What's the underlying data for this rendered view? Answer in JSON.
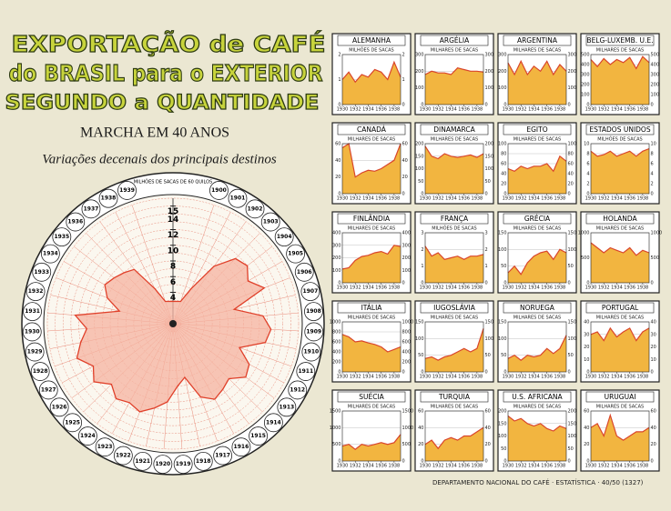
{
  "footer": "DEPARTAMENTO NACIONAL DO CAFÉ · ESTATÍSTICA · 40/50 (1327)",
  "chart_data": [
    {
      "type": "polar",
      "title_lines": [
        "EXPORTAÇÃO de CAFÉ",
        "do BRASIL para o EXTERIOR",
        "SEGUNDO a QUANTIDADE"
      ],
      "subtitle": "MARCHA EM 40 ANOS",
      "note": "Variações decenais dos principais destinos",
      "axis_label": "MILHÕES DE SACAS DE 60 QUILOS",
      "x": [
        1900,
        1901,
        1902,
        1903,
        1904,
        1905,
        1906,
        1907,
        1908,
        1909,
        1910,
        1911,
        1912,
        1913,
        1914,
        1915,
        1916,
        1917,
        1918,
        1919,
        1920,
        1921,
        1922,
        1923,
        1924,
        1925,
        1926,
        1927,
        1928,
        1929,
        1930,
        1931,
        1932,
        1933,
        1934,
        1935,
        1936,
        1937,
        1938,
        1939
      ],
      "values": [
        3,
        5,
        9,
        11.5,
        12,
        11,
        12.5,
        8,
        11.5,
        12.5,
        12,
        9,
        11,
        11.5,
        10,
        10.5,
        11,
        10,
        7,
        8,
        10,
        11,
        12,
        11.5,
        12,
        11,
        12.5,
        11.5,
        13,
        12,
        11,
        12.5,
        7,
        9,
        10,
        9.5,
        9,
        8.5,
        5,
        3
      ],
      "rlim": [
        0,
        16
      ],
      "rticks": [
        4,
        6,
        8,
        10,
        12,
        14,
        15
      ],
      "color": "#f5b3a0",
      "line_color": "#e0402a"
    },
    {
      "type": "area",
      "title": "ALEMANHA",
      "subtitle": "MILHÕES DE SACAS",
      "x": [
        1930,
        1931,
        1932,
        1933,
        1934,
        1935,
        1936,
        1937,
        1938,
        1939
      ],
      "values": [
        1.0,
        1.3,
        0.9,
        1.2,
        1.1,
        1.4,
        1.3,
        1.0,
        1.7,
        1.1
      ],
      "ylim": [
        0,
        2
      ],
      "yticks": [
        0,
        1,
        2
      ],
      "xticks": [
        1930,
        1932,
        1934,
        1936,
        1938
      ],
      "color": "#f2b540",
      "line_color": "#d9452b"
    },
    {
      "type": "area",
      "title": "ARGÉLIA",
      "subtitle": "MILHARES DE SACAS",
      "x": [
        1930,
        1931,
        1932,
        1933,
        1934,
        1935,
        1936,
        1937,
        1938,
        1939
      ],
      "values": [
        180,
        200,
        190,
        190,
        180,
        220,
        210,
        200,
        200,
        195
      ],
      "ylim": [
        0,
        300
      ],
      "yticks": [
        0,
        100,
        200,
        300
      ],
      "xticks": [
        1930,
        1932,
        1934,
        1936,
        1938
      ],
      "color": "#f2b540",
      "line_color": "#d9452b"
    },
    {
      "type": "area",
      "title": "ARGENTINA",
      "subtitle": "MILHARES DE SACAS",
      "x": [
        1930,
        1931,
        1932,
        1933,
        1934,
        1935,
        1936,
        1937,
        1938,
        1939
      ],
      "values": [
        250,
        180,
        260,
        180,
        230,
        200,
        260,
        180,
        240,
        200
      ],
      "ylim": [
        0,
        300
      ],
      "yticks": [
        0,
        100,
        200,
        300
      ],
      "xticks": [
        1930,
        1932,
        1934,
        1936,
        1938
      ],
      "color": "#f2b540",
      "line_color": "#d9452b"
    },
    {
      "type": "area",
      "title": "BELG-LUXEMB. U.E.",
      "subtitle": "MILHARES DE SACAS",
      "x": [
        1930,
        1931,
        1932,
        1933,
        1934,
        1935,
        1936,
        1937,
        1938,
        1939
      ],
      "values": [
        450,
        380,
        460,
        400,
        450,
        420,
        470,
        360,
        480,
        420
      ],
      "ylim": [
        0,
        500
      ],
      "yticks": [
        0,
        100,
        200,
        300,
        400,
        500
      ],
      "xticks": [
        1930,
        1932,
        1934,
        1936,
        1938
      ],
      "color": "#f2b540",
      "line_color": "#d9452b"
    },
    {
      "type": "area",
      "title": "CANADÁ",
      "subtitle": "MILHARES DE SACAS",
      "x": [
        1930,
        1931,
        1932,
        1933,
        1934,
        1935,
        1936,
        1937,
        1938,
        1939
      ],
      "values": [
        55,
        60,
        20,
        25,
        28,
        27,
        30,
        35,
        40,
        60
      ],
      "ylim": [
        0,
        60
      ],
      "yticks": [
        0,
        20,
        40,
        60
      ],
      "xticks": [
        1930,
        1932,
        1934,
        1936,
        1938
      ],
      "color": "#f2b540",
      "line_color": "#d9452b"
    },
    {
      "type": "area",
      "title": "DINAMARCA",
      "subtitle": "MILHARES DE SACAS",
      "x": [
        1930,
        1931,
        1932,
        1933,
        1934,
        1935,
        1936,
        1937,
        1938,
        1939
      ],
      "values": [
        190,
        150,
        140,
        160,
        150,
        145,
        150,
        155,
        145,
        160
      ],
      "ylim": [
        0,
        200
      ],
      "yticks": [
        0,
        50,
        100,
        150,
        200
      ],
      "xticks": [
        1930,
        1932,
        1934,
        1936,
        1938
      ],
      "color": "#f2b540",
      "line_color": "#d9452b"
    },
    {
      "type": "area",
      "title": "EGITO",
      "subtitle": "MILHARES DE SACAS",
      "x": [
        1930,
        1931,
        1932,
        1933,
        1934,
        1935,
        1936,
        1937,
        1938,
        1939
      ],
      "values": [
        50,
        45,
        55,
        50,
        55,
        55,
        60,
        45,
        75,
        65
      ],
      "ylim": [
        0,
        100
      ],
      "yticks": [
        0,
        20,
        40,
        60,
        80,
        100
      ],
      "xticks": [
        1930,
        1932,
        1934,
        1936,
        1938
      ],
      "color": "#f2b540",
      "line_color": "#d9452b"
    },
    {
      "type": "area",
      "title": "ESTADOS UNIDOS",
      "subtitle": "MILHÕES DE SACAS",
      "x": [
        1930,
        1931,
        1932,
        1933,
        1934,
        1935,
        1936,
        1937,
        1938,
        1939
      ],
      "values": [
        8.5,
        7.5,
        7.8,
        8.5,
        7.5,
        8,
        8.5,
        7.5,
        8.5,
        9
      ],
      "ylim": [
        0,
        10
      ],
      "yticks": [
        0,
        2,
        4,
        6,
        8,
        10
      ],
      "xticks": [
        1930,
        1932,
        1934,
        1936,
        1938
      ],
      "color": "#f2b540",
      "line_color": "#d9452b"
    },
    {
      "type": "area",
      "title": "FINLÂNDIA",
      "subtitle": "MILHARES DE SACAS",
      "x": [
        1930,
        1931,
        1932,
        1933,
        1934,
        1935,
        1936,
        1937,
        1938,
        1939
      ],
      "values": [
        110,
        120,
        180,
        210,
        220,
        240,
        250,
        230,
        300,
        290
      ],
      "ylim": [
        0,
        400
      ],
      "yticks": [
        0,
        100,
        200,
        300,
        400
      ],
      "xticks": [
        1930,
        1932,
        1934,
        1936,
        1938
      ],
      "color": "#f2b540",
      "line_color": "#d9452b"
    },
    {
      "type": "area",
      "title": "FRANÇA",
      "subtitle": "MILHÕES DE SACAS",
      "x": [
        1930,
        1931,
        1932,
        1933,
        1934,
        1935,
        1936,
        1937,
        1938,
        1939
      ],
      "values": [
        2.2,
        1.6,
        1.8,
        1.4,
        1.5,
        1.6,
        1.4,
        1.6,
        1.6,
        1.7
      ],
      "ylim": [
        0,
        3
      ],
      "yticks": [
        0,
        1,
        2,
        3
      ],
      "xticks": [
        1930,
        1932,
        1934,
        1936,
        1938
      ],
      "color": "#f2b540",
      "line_color": "#d9452b"
    },
    {
      "type": "area",
      "title": "GRÉCIA",
      "subtitle": "MILHARES DE SACAS",
      "x": [
        1930,
        1931,
        1932,
        1933,
        1934,
        1935,
        1936,
        1937,
        1938,
        1939
      ],
      "values": [
        30,
        50,
        25,
        60,
        80,
        90,
        95,
        70,
        100,
        90
      ],
      "ylim": [
        0,
        150
      ],
      "yticks": [
        0,
        50,
        100,
        150
      ],
      "xticks": [
        1930,
        1932,
        1934,
        1936,
        1938
      ],
      "color": "#f2b540",
      "line_color": "#d9452b"
    },
    {
      "type": "area",
      "title": "HOLANDA",
      "subtitle": "MILHARES DE SACAS",
      "x": [
        1930,
        1931,
        1932,
        1933,
        1934,
        1935,
        1936,
        1937,
        1938,
        1939
      ],
      "values": [
        800,
        700,
        600,
        700,
        650,
        600,
        700,
        550,
        650,
        600
      ],
      "ylim": [
        0,
        1000
      ],
      "yticks": [
        0,
        500,
        1000
      ],
      "xticks": [
        1930,
        1932,
        1934,
        1936,
        1938
      ],
      "color": "#f2b540",
      "line_color": "#d9452b"
    },
    {
      "type": "area",
      "title": "ITÁLIA",
      "subtitle": "MILHARES DE SACAS",
      "x": [
        1930,
        1931,
        1932,
        1933,
        1934,
        1935,
        1936,
        1937,
        1938,
        1939
      ],
      "values": [
        750,
        700,
        600,
        620,
        580,
        550,
        500,
        400,
        450,
        500
      ],
      "ylim": [
        0,
        1000
      ],
      "yticks": [
        0,
        200,
        400,
        600,
        800,
        1000
      ],
      "xticks": [
        1930,
        1932,
        1934,
        1936,
        1938
      ],
      "color": "#f2b540",
      "line_color": "#d9452b"
    },
    {
      "type": "area",
      "title": "IUGOSLÁVIA",
      "subtitle": "MILHARES DE SACAS",
      "x": [
        1930,
        1931,
        1932,
        1933,
        1934,
        1935,
        1936,
        1937,
        1938,
        1939
      ],
      "values": [
        40,
        45,
        35,
        45,
        50,
        60,
        70,
        60,
        70,
        130
      ],
      "ylim": [
        0,
        150
      ],
      "yticks": [
        0,
        50,
        100,
        150
      ],
      "xticks": [
        1930,
        1932,
        1934,
        1936,
        1938
      ],
      "color": "#f2b540",
      "line_color": "#d9452b"
    },
    {
      "type": "area",
      "title": "NORUEGA",
      "subtitle": "MILHARES DE SACAS",
      "x": [
        1930,
        1931,
        1932,
        1933,
        1934,
        1935,
        1936,
        1937,
        1938,
        1939
      ],
      "values": [
        40,
        50,
        35,
        50,
        45,
        50,
        70,
        55,
        70,
        110
      ],
      "ylim": [
        0,
        150
      ],
      "yticks": [
        0,
        50,
        100,
        150
      ],
      "xticks": [
        1930,
        1932,
        1934,
        1936,
        1938
      ],
      "color": "#f2b540",
      "line_color": "#d9452b"
    },
    {
      "type": "area",
      "title": "PORTUGAL",
      "subtitle": "MILHARES DE SACAS",
      "x": [
        1930,
        1931,
        1932,
        1933,
        1934,
        1935,
        1936,
        1937,
        1938,
        1939
      ],
      "values": [
        30,
        32,
        25,
        35,
        28,
        32,
        35,
        25,
        32,
        35
      ],
      "ylim": [
        0,
        40
      ],
      "yticks": [
        0,
        10,
        20,
        30,
        40
      ],
      "xticks": [
        1930,
        1932,
        1934,
        1936,
        1938
      ],
      "color": "#f2b540",
      "line_color": "#d9452b"
    },
    {
      "type": "area",
      "title": "SUÉCIA",
      "subtitle": "MILHARES DE SACAS",
      "x": [
        1930,
        1931,
        1932,
        1933,
        1934,
        1935,
        1936,
        1937,
        1938,
        1939
      ],
      "values": [
        450,
        500,
        350,
        500,
        450,
        500,
        550,
        500,
        550,
        800
      ],
      "ylim": [
        0,
        1500
      ],
      "yticks": [
        0,
        500,
        1000,
        1500
      ],
      "xticks": [
        1930,
        1932,
        1934,
        1936,
        1938
      ],
      "color": "#f2b540",
      "line_color": "#d9452b"
    },
    {
      "type": "area",
      "title": "TURQUIA",
      "subtitle": "MILHARES DE SACAS",
      "x": [
        1930,
        1931,
        1932,
        1933,
        1934,
        1935,
        1936,
        1937,
        1938,
        1939
      ],
      "values": [
        20,
        25,
        15,
        25,
        28,
        25,
        30,
        30,
        35,
        40
      ],
      "ylim": [
        0,
        60
      ],
      "yticks": [
        0,
        20,
        40,
        60
      ],
      "xticks": [
        1930,
        1932,
        1934,
        1936,
        1938
      ],
      "color": "#f2b540",
      "line_color": "#d9452b"
    },
    {
      "type": "area",
      "title": "U.S. AFRICANA",
      "subtitle": "MILHARES DE SACAS",
      "x": [
        1930,
        1931,
        1932,
        1933,
        1934,
        1935,
        1936,
        1937,
        1938,
        1939
      ],
      "values": [
        180,
        160,
        170,
        150,
        140,
        150,
        130,
        120,
        140,
        130
      ],
      "ylim": [
        0,
        200
      ],
      "yticks": [
        0,
        50,
        100,
        150,
        200
      ],
      "xticks": [
        1930,
        1932,
        1934,
        1936,
        1938
      ],
      "color": "#f2b540",
      "line_color": "#d9452b"
    },
    {
      "type": "area",
      "title": "URUGUAI",
      "subtitle": "MILHARES DE SACAS",
      "x": [
        1930,
        1931,
        1932,
        1933,
        1934,
        1935,
        1936,
        1937,
        1938,
        1939
      ],
      "values": [
        40,
        45,
        30,
        55,
        30,
        25,
        30,
        35,
        35,
        40
      ],
      "ylim": [
        0,
        60
      ],
      "yticks": [
        0,
        20,
        40,
        60
      ],
      "xticks": [
        1930,
        1932,
        1934,
        1936,
        1938
      ],
      "color": "#f2b540",
      "line_color": "#d9452b"
    }
  ]
}
